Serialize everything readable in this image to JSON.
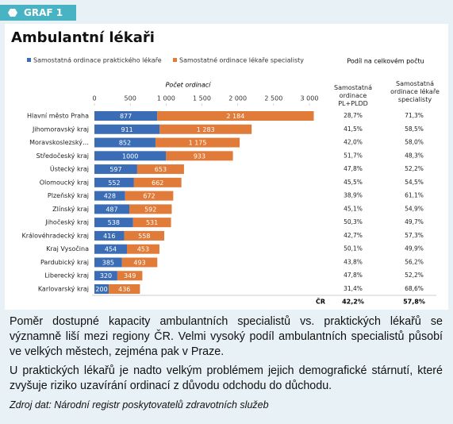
{
  "header": {
    "badge": "GRAF 1"
  },
  "chart_data": {
    "type": "stacked-bar-horizontal",
    "title": "Ambulantní lékaři",
    "x_label": "Počet ordinací",
    "categories": [
      "Hlavní město Praha",
      "Jihomoravský kraj",
      "Moravskoslezský…",
      "Středočeský kraj",
      "Ústecký kraj",
      "Olomoucký kraj",
      "Plzeňský kraj",
      "Zlínský kraj",
      "Jihočeský kraj",
      "Královéhradecký kraj",
      "Kraj Vysočina",
      "Pardubický kraj",
      "Liberecký kraj",
      "Karlovarský kraj"
    ],
    "series": [
      {
        "name": "Samostatná ordinace praktického lékaře",
        "color": "#3a6db5",
        "values": [
          877,
          911,
          852,
          1000,
          597,
          552,
          428,
          487,
          538,
          416,
          454,
          385,
          320,
          200
        ],
        "value_labels": [
          "877",
          "911",
          "852",
          "1000",
          "597",
          "552",
          "428",
          "487",
          "538",
          "416",
          "454",
          "385",
          "320",
          "200"
        ]
      },
      {
        "name": "Samostatné ordinace lékaře specialisty",
        "color": "#e07b39",
        "values": [
          2184,
          1283,
          1175,
          933,
          653,
          662,
          672,
          592,
          531,
          558,
          453,
          493,
          349,
          436
        ],
        "value_labels": [
          "2 184",
          "1 283",
          "1 175",
          "933",
          "653",
          "662",
          "672",
          "592",
          "531",
          "558",
          "453",
          "493",
          "349",
          "436"
        ]
      }
    ],
    "xlim": [
      0,
      3000
    ],
    "xticks": [
      0,
      500,
      {
        "value": 1000,
        "label": "1 000"
      },
      {
        "value": 1500,
        "label": "1 500"
      },
      {
        "value": 2000,
        "label": "2 000"
      },
      {
        "value": 2500,
        "label": "2 500"
      },
      {
        "value": 3000,
        "label": "3 000"
      }
    ],
    "grid": false,
    "share_table": {
      "title": "Podíl na celkovém počtu",
      "columns": [
        "Samostatná ordinace PL+PLDD",
        "Samostatná ordinace lékaře specialisty"
      ],
      "rows": [
        [
          "28,7%",
          "71,3%"
        ],
        [
          "41,5%",
          "58,5%"
        ],
        [
          "42,0%",
          "58,0%"
        ],
        [
          "51,7%",
          "48,3%"
        ],
        [
          "47,8%",
          "52,2%"
        ],
        [
          "45,5%",
          "54,5%"
        ],
        [
          "38,9%",
          "61,1%"
        ],
        [
          "45,1%",
          "54,9%"
        ],
        [
          "50,3%",
          "49,7%"
        ],
        [
          "42,7%",
          "57,3%"
        ],
        [
          "50,1%",
          "49,9%"
        ],
        [
          "43,8%",
          "56,2%"
        ],
        [
          "47,8%",
          "52,2%"
        ],
        [
          "31,4%",
          "68,6%"
        ]
      ],
      "total_label": "ČR",
      "total": [
        "42,2%",
        "57,8%"
      ]
    }
  },
  "text": {
    "paragraphs": [
      "Poměr dostupné kapacity ambulantních specialistů vs. praktických lékařů se významně liší mezi regiony ČR. Velmi vysoký podíl ambulantních specialistů působí ve velkých městech, zejména pak v Praze.",
      "U praktických lékařů je nadto velkým problémem jejich demografické stárnutí, které zvyšuje riziko uzavírání ordinací z důvodu odchodu do důchodu."
    ],
    "source": "Zdroj dat: Národní registr poskytovatelů zdravotních služeb"
  }
}
